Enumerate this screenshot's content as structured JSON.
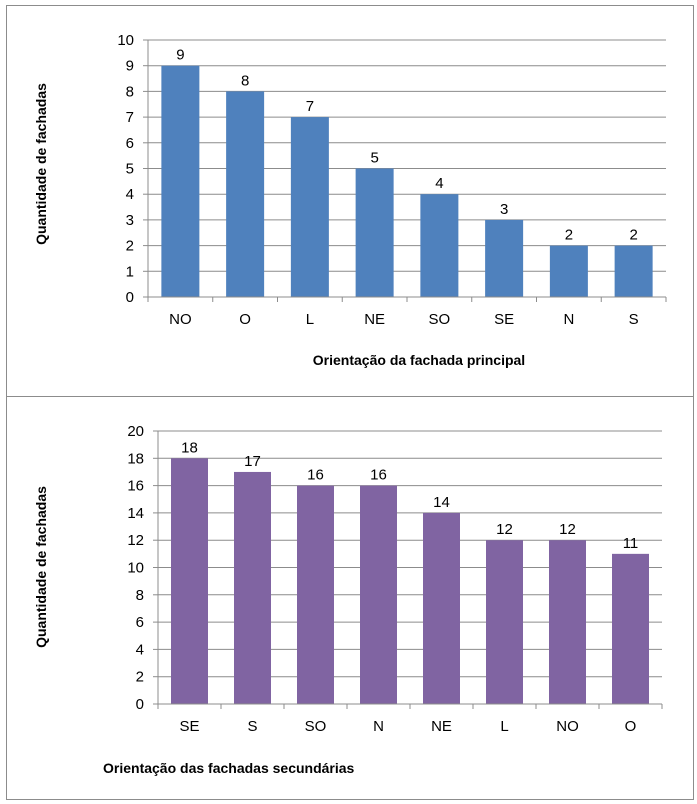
{
  "chart_data": [
    {
      "type": "bar",
      "categories": [
        "NO",
        "O",
        "L",
        "NE",
        "SO",
        "SE",
        "N",
        "S"
      ],
      "values": [
        9,
        8,
        7,
        5,
        4,
        3,
        2,
        2
      ],
      "xlabel": "Orientação da fachada principal",
      "ylabel": "Quantidade de fachadas",
      "ylim": [
        0,
        10
      ],
      "ytick_step": 1,
      "grid": true,
      "legend": "none",
      "bar_color": "#4f81bd"
    },
    {
      "type": "bar",
      "categories": [
        "SE",
        "S",
        "SO",
        "N",
        "NE",
        "L",
        "NO",
        "O"
      ],
      "values": [
        18,
        17,
        16,
        16,
        14,
        12,
        12,
        11
      ],
      "xlabel": "Orientação das fachadas secundárias",
      "ylabel": "Quantidade de fachadas",
      "ylim": [
        0,
        20
      ],
      "ytick_step": 2,
      "grid": true,
      "legend": "none",
      "bar_color": "#8064a2"
    }
  ]
}
